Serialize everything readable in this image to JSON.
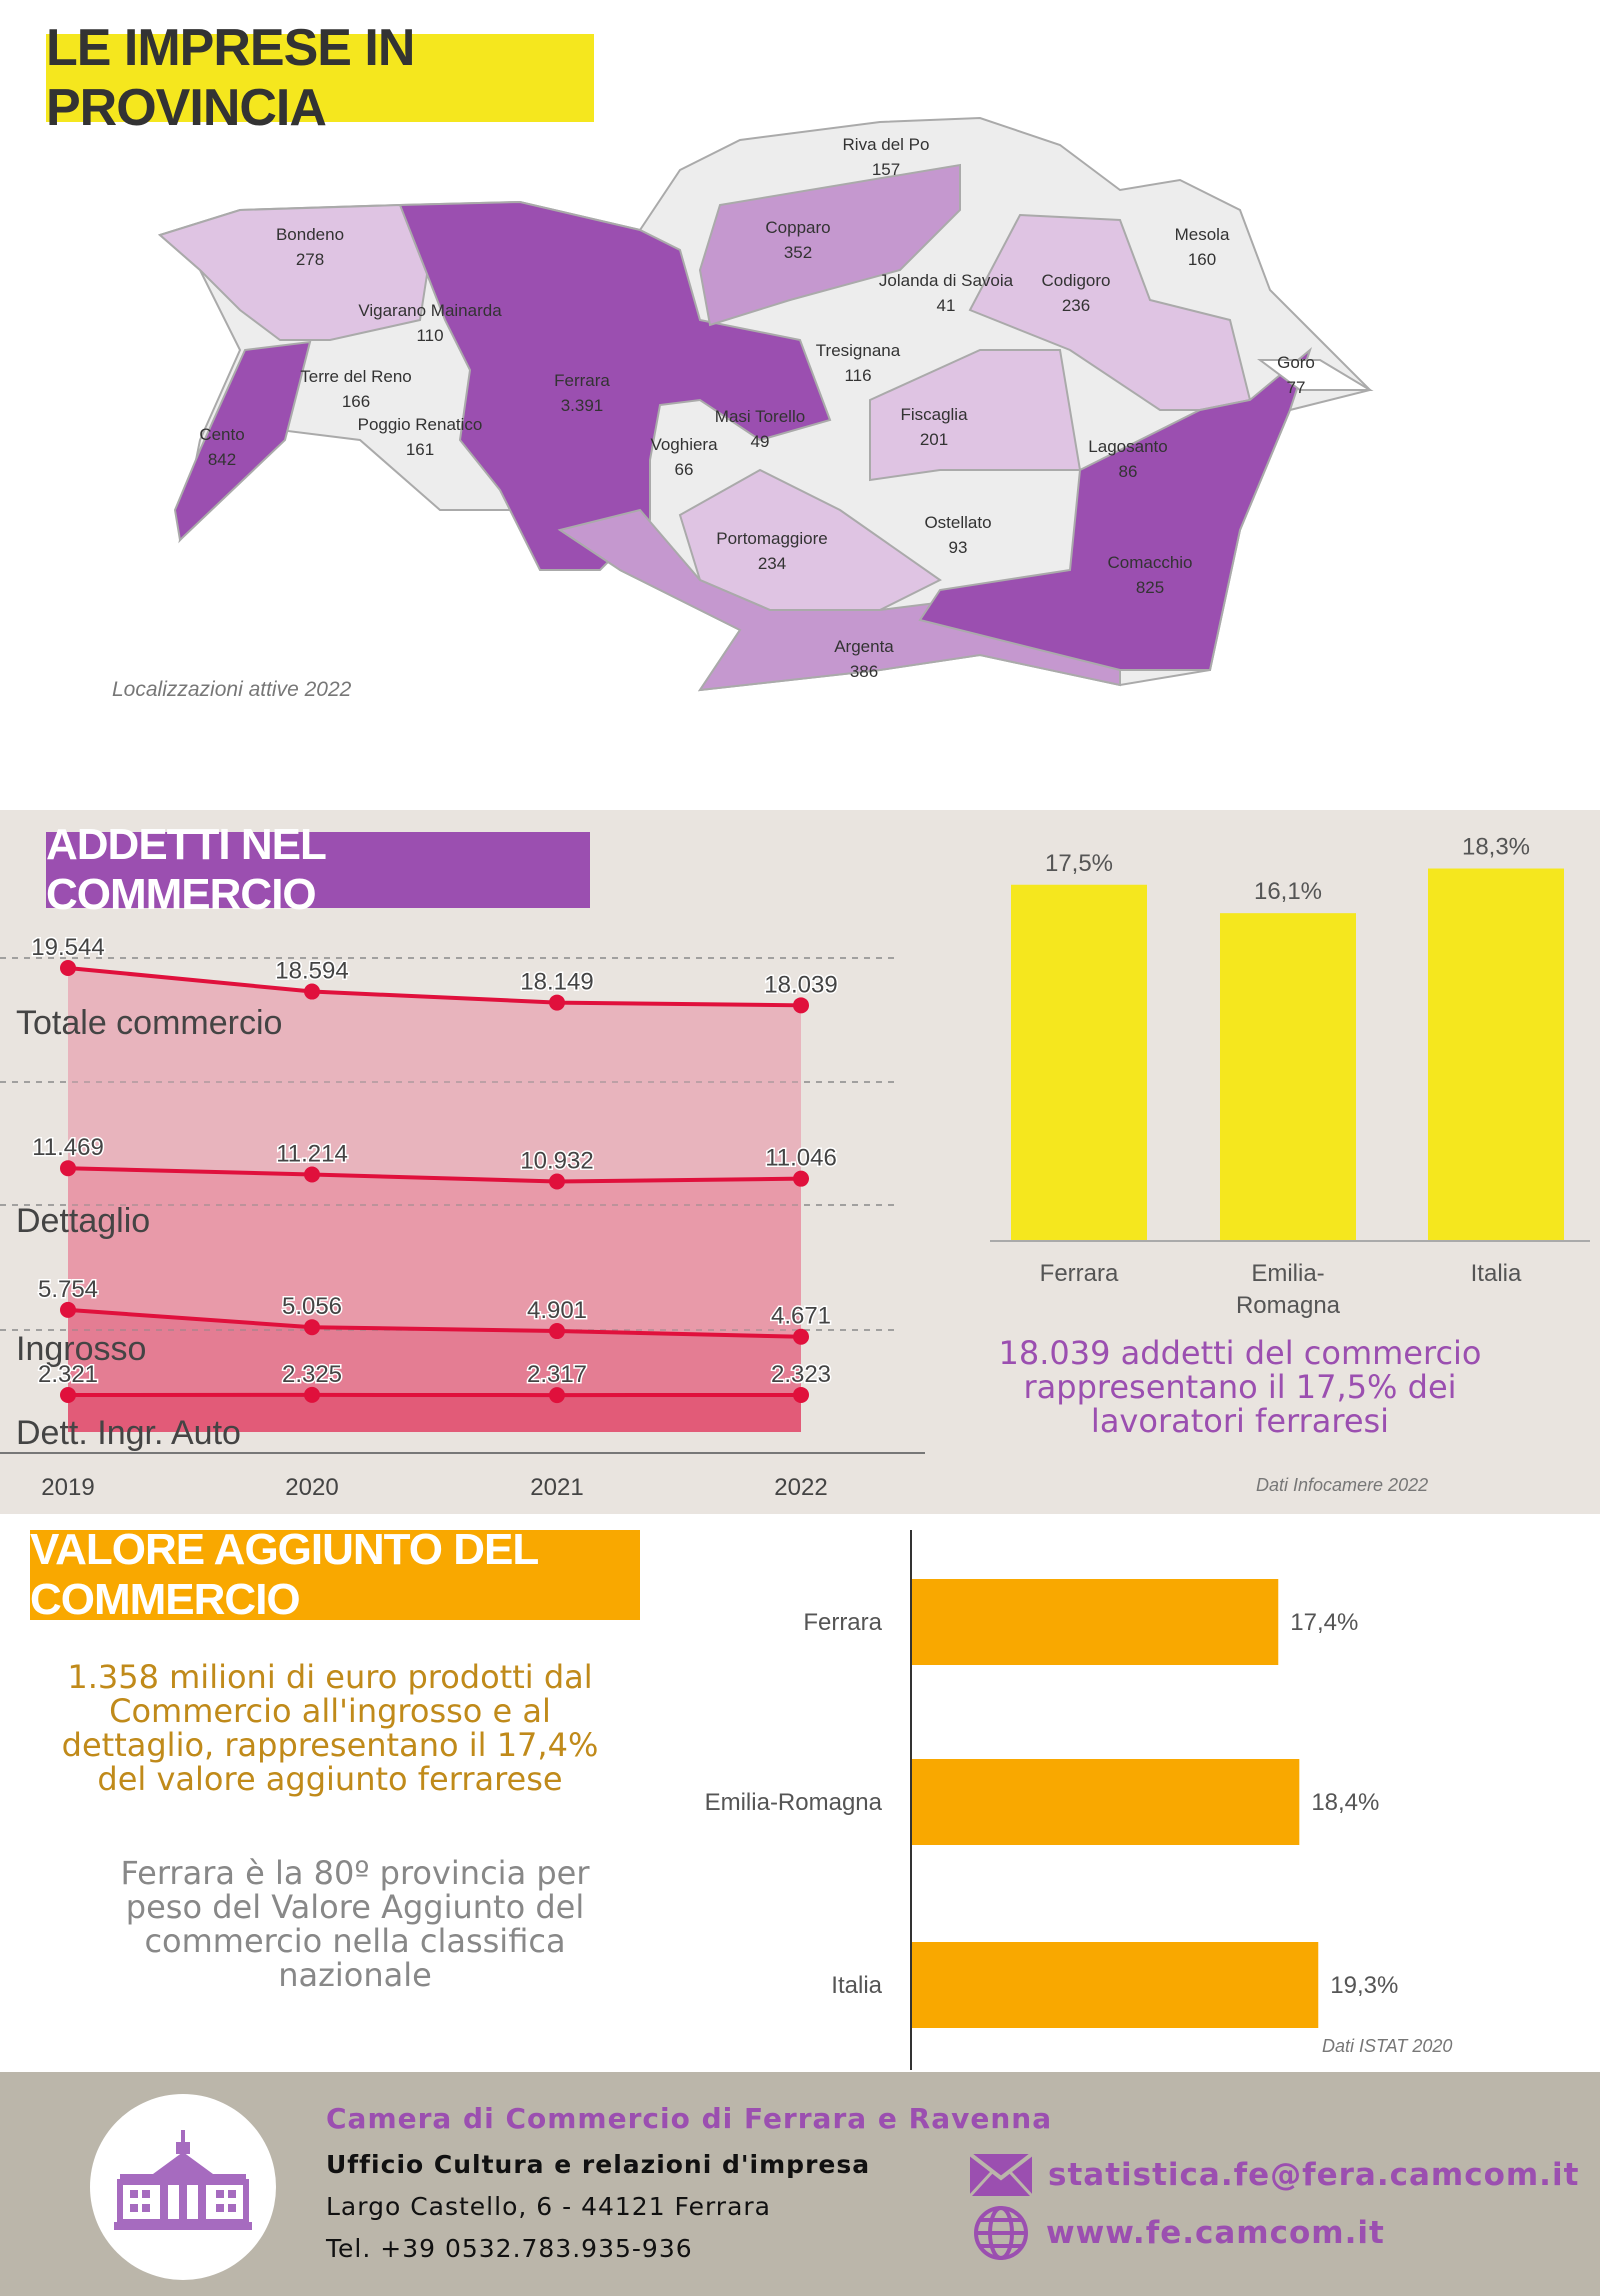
{
  "map_section": {
    "title": "LE IMPRESE IN PROVINCIA",
    "note": "Localizzazioni attive 2022",
    "municipalities": [
      {
        "name": "Riva del Po",
        "value": "157"
      },
      {
        "name": "Bondeno",
        "value": "278"
      },
      {
        "name": "Copparo",
        "value": "352"
      },
      {
        "name": "Mesola",
        "value": "160"
      },
      {
        "name": "Jolanda di Savoia",
        "value": "41"
      },
      {
        "name": "Codigoro",
        "value": "236"
      },
      {
        "name": "Vigarano Mainarda",
        "value": "110"
      },
      {
        "name": "Tresignana",
        "value": "116"
      },
      {
        "name": "Goro",
        "value": "77"
      },
      {
        "name": "Ferrara",
        "value": "3.391"
      },
      {
        "name": "Terre del Reno",
        "value": "166"
      },
      {
        "name": "Poggio Renatico",
        "value": "161"
      },
      {
        "name": "Masi Torello",
        "value": "49"
      },
      {
        "name": "Fiscaglia",
        "value": "201"
      },
      {
        "name": "Cento",
        "value": "842"
      },
      {
        "name": "Voghiera",
        "value": "66"
      },
      {
        "name": "Lagosanto",
        "value": "86"
      },
      {
        "name": "Ostellato",
        "value": "93"
      },
      {
        "name": "Portomaggiore",
        "value": "234"
      },
      {
        "name": "Comacchio",
        "value": "825"
      },
      {
        "name": "Argenta",
        "value": "386"
      }
    ]
  },
  "addetti_section": {
    "title": "ADDETTI NEL COMMERCIO",
    "summary": "18.039 addetti del commercio rappresentano il 17,5% dei lavoratori ferraresi",
    "source": "Dati Infocamere 2022"
  },
  "valore_section": {
    "title": "VALORE AGGIUNTO DEL COMMERCIO",
    "text1": "1.358 milioni di euro prodotti dal Commercio all'ingrosso e al dettaglio, rappresentano il 17,4% del valore aggiunto ferrarese",
    "text2": "Ferrara è la 80º provincia per peso del Valore Aggiunto del commercio nella classifica nazionale",
    "source": "Dati ISTAT 2020"
  },
  "footer": {
    "org": "Camera di Commercio di Ferrara e Ravenna",
    "office": "Ufficio Cultura e relazioni d'impresa",
    "address": "Largo Castello, 6 - 44121 Ferrara",
    "phone": "Tel. +39 0532.783.935-936",
    "email": "statistica.fe@fera.camcom.it",
    "website": "www.fe.camcom.it"
  },
  "colors": {
    "yellow": "#f5e71e",
    "purple": "#9b4fb0",
    "orange": "#f9a800",
    "red": "#e0103c"
  },
  "chart_data": [
    {
      "type": "area",
      "x": [
        "2019",
        "2020",
        "2021",
        "2022"
      ],
      "series": [
        {
          "name": "Totale commercio",
          "values": [
            19544,
            18594,
            18149,
            18039
          ],
          "labels": [
            "19.544",
            "18.594",
            "18.149",
            "18.039"
          ]
        },
        {
          "name": "Dettaglio",
          "values": [
            11469,
            11214,
            10932,
            11046
          ],
          "labels": [
            "11.469",
            "11.214",
            "10.932",
            "11.046"
          ]
        },
        {
          "name": "Ingrosso",
          "values": [
            5754,
            5056,
            4901,
            4671
          ],
          "labels": [
            "5.754",
            "5.056",
            "4.901",
            "4.671"
          ]
        },
        {
          "name": "Dett. Ingr. Auto",
          "values": [
            2321,
            2325,
            2317,
            2323
          ],
          "labels": [
            "2.321",
            "2.325",
            "2.317",
            "2.323"
          ]
        }
      ],
      "grid": true
    },
    {
      "type": "bar",
      "categories": [
        "Ferrara",
        "Emilia-Romagna",
        "Italia"
      ],
      "values": [
        17.5,
        16.1,
        18.3
      ],
      "labels": [
        "17,5%",
        "16,1%",
        "18,3%"
      ]
    },
    {
      "type": "bar",
      "orientation": "horizontal",
      "categories": [
        "Ferrara",
        "Emilia-Romagna",
        "Italia"
      ],
      "values": [
        17.4,
        18.4,
        19.3
      ],
      "labels": [
        "17,4%",
        "18,4%",
        "19,3%"
      ]
    }
  ]
}
